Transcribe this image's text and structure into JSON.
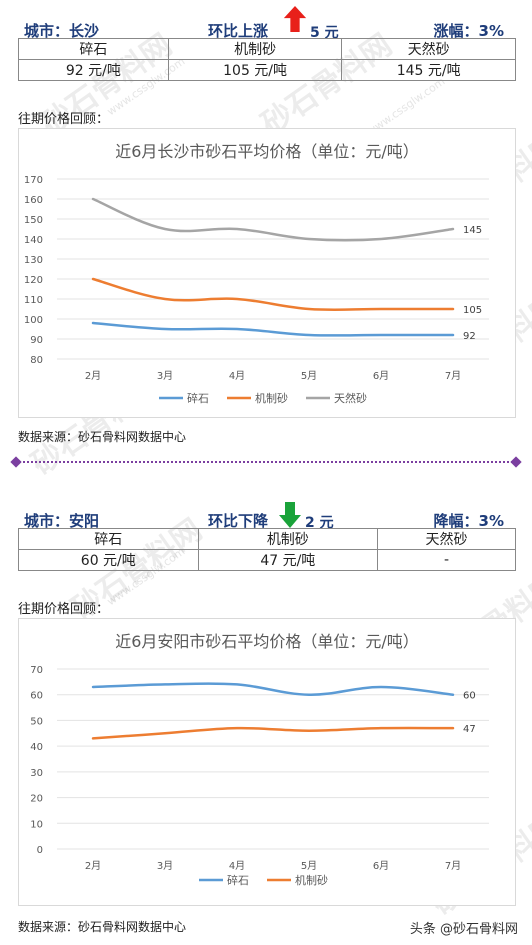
{
  "watermark": {
    "text": "砂石骨料网",
    "url": "www.cssglw.com"
  },
  "footer_brand": "头条 @砂石骨料网",
  "sections": [
    {
      "city_label": "城市：长沙",
      "change_label": "环比上涨",
      "change_direction": "up",
      "change_amount": "5 元",
      "pct_label": "涨幅：3%",
      "table_headers": [
        "碎石",
        "机制砂",
        "天然砂"
      ],
      "table_values": [
        "92 元/吨",
        "105 元/吨",
        "145 元/吨"
      ],
      "history_label": "往期价格回顾：",
      "source_label": "数据来源：砂石骨料网数据中心"
    },
    {
      "city_label": "城市：安阳",
      "change_label": "环比下降",
      "change_direction": "down",
      "change_amount": "2 元",
      "pct_label": "降幅：3%",
      "table_headers": [
        "碎石",
        "机制砂",
        "天然砂"
      ],
      "table_values": [
        "60 元/吨",
        "47 元/吨",
        "-"
      ],
      "history_label": "往期价格回顾：",
      "source_label": "数据来源：砂石骨料网数据中心"
    }
  ],
  "colors": {
    "arrow_up": "#e8201a",
    "arrow_down": "#1aa33a",
    "header_text": "#1f3d7a"
  },
  "chart_data": [
    {
      "type": "line",
      "title": "近6月长沙市砂石平均价格（单位：元/吨）",
      "categories": [
        "2月",
        "3月",
        "4月",
        "5月",
        "6月",
        "7月"
      ],
      "ylim": [
        80,
        170
      ],
      "yticks": [
        80,
        90,
        100,
        110,
        120,
        130,
        140,
        150,
        160,
        170
      ],
      "grid": true,
      "legend": "bottom",
      "series": [
        {
          "name": "碎石",
          "color": "#5b9bd5",
          "values": [
            98,
            95,
            95,
            92,
            92,
            92
          ],
          "end_label": "92"
        },
        {
          "name": "机制砂",
          "color": "#ed7d31",
          "values": [
            120,
            110,
            110,
            105,
            105,
            105
          ],
          "end_label": "105"
        },
        {
          "name": "天然砂",
          "color": "#a5a5a5",
          "values": [
            160,
            145,
            145,
            140,
            140,
            145
          ],
          "end_label": "145"
        }
      ]
    },
    {
      "type": "line",
      "title": "近6月安阳市砂石平均价格（单位：元/吨）",
      "categories": [
        "2月",
        "3月",
        "4月",
        "5月",
        "6月",
        "7月"
      ],
      "ylim": [
        0,
        70
      ],
      "yticks": [
        0,
        10,
        20,
        30,
        40,
        50,
        60,
        70
      ],
      "grid": true,
      "legend": "bottom",
      "series": [
        {
          "name": "碎石",
          "color": "#5b9bd5",
          "values": [
            63,
            64,
            64,
            60,
            63,
            60
          ],
          "end_label": "60"
        },
        {
          "name": "机制砂",
          "color": "#ed7d31",
          "values": [
            43,
            45,
            47,
            46,
            47,
            47
          ],
          "end_label": "47"
        }
      ]
    }
  ]
}
